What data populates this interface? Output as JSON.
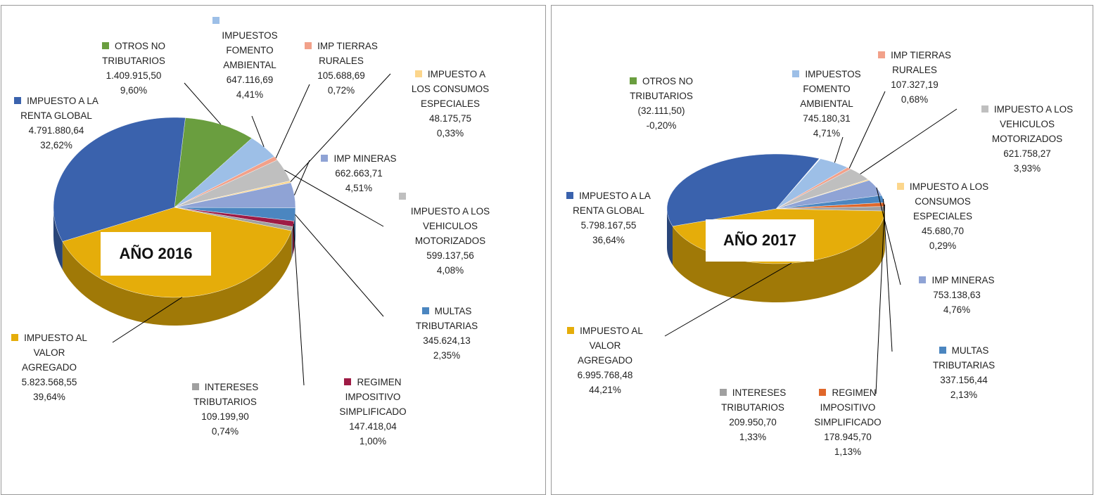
{
  "chart_data": [
    {
      "type": "pie",
      "title": "AÑO 2016",
      "categories": [
        "OTROS NO TRIBUTARIOS",
        "IMPUESTOS FOMENTO AMBIENTAL",
        "IMP TIERRAS RURALES",
        "IMPUESTO A LOS VEHICULOS MOTORIZADOS",
        "IMPUESTO A LOS CONSUMOS ESPECIALES",
        "IMP MINERAS",
        "MULTAS TRIBUTARIAS",
        "REGIMEN IMPOSITIVO SIMPLIFICADO",
        "INTERESES TRIBUTARIOS",
        "IMPUESTO AL VALOR AGREGADO",
        "IMPUESTO A LA RENTA GLOBAL"
      ],
      "values": [
        1409915.5,
        647116.69,
        105688.69,
        599137.56,
        48175.75,
        662663.71,
        345624.13,
        147418.04,
        109199.9,
        5823568.55,
        4791880.64
      ],
      "value_labels": [
        "1.409.915,50",
        "647.116,69",
        "105.688,69",
        "599.137,56",
        "48.175,75",
        "662.663,71",
        "345.624,13",
        "147.418,04",
        "109.199,90",
        "5.823.568,55",
        "4.791.880,64"
      ],
      "percents": [
        9.6,
        4.41,
        0.72,
        4.08,
        0.33,
        4.51,
        2.35,
        1.0,
        0.74,
        39.64,
        32.62
      ],
      "percent_labels": [
        "9,60%",
        "4,41%",
        "0,72%",
        "4,08%",
        "0,33%",
        "4,51%",
        "2,35%",
        "1,00%",
        "0,74%",
        "39,64%",
        "32,62%"
      ],
      "colors": [
        "#6a9e3f",
        "#9dbfe7",
        "#f2a18a",
        "#bfbfbf",
        "#fcd68c",
        "#8fa3d5",
        "#4b86c0",
        "#9e1b45",
        "#a0a0a0",
        "#e5ad0a",
        "#3a62ad"
      ]
    },
    {
      "type": "pie",
      "title": "AÑO 2017",
      "categories": [
        "OTROS NO TRIBUTARIOS",
        "IMPUESTOS FOMENTO AMBIENTAL",
        "IMP TIERRAS RURALES",
        "IMPUESTO A LOS VEHICULOS MOTORIZADOS",
        "IMPUESTO A LOS CONSUMOS ESPECIALES",
        "IMP MINERAS",
        "MULTAS TRIBUTARIAS",
        "REGIMEN IMPOSITIVO SIMPLIFICADO",
        "INTERESES TRIBUTARIOS",
        "IMPUESTO AL VALOR AGREGADO",
        "IMPUESTO A LA RENTA GLOBAL"
      ],
      "values": [
        -32111.5,
        745180.31,
        107327.19,
        621758.27,
        45680.7,
        753138.63,
        337156.44,
        178945.7,
        209950.7,
        6995768.48,
        5798167.55
      ],
      "value_labels": [
        "(32.111,50)",
        "745.180,31",
        "107.327,19",
        "621.758,27",
        "45.680,70",
        "753.138,63",
        "337.156,44",
        "178.945,70",
        "209.950,70",
        "6.995.768,48",
        "5.798.167,55"
      ],
      "percents": [
        -0.2,
        4.71,
        0.68,
        3.93,
        0.29,
        4.76,
        2.13,
        1.13,
        1.33,
        44.21,
        36.64
      ],
      "percent_labels": [
        "-0,20%",
        "4,71%",
        "0,68%",
        "3,93%",
        "0,29%",
        "4,76%",
        "2,13%",
        "1,13%",
        "1,33%",
        "44,21%",
        "36,64%"
      ],
      "colors": [
        "#6a9e3f",
        "#9dbfe7",
        "#f2a18a",
        "#bfbfbf",
        "#fcd68c",
        "#8fa3d5",
        "#4b86c0",
        "#e0672a",
        "#a0a0a0",
        "#e5ad0a",
        "#3a62ad"
      ]
    }
  ]
}
